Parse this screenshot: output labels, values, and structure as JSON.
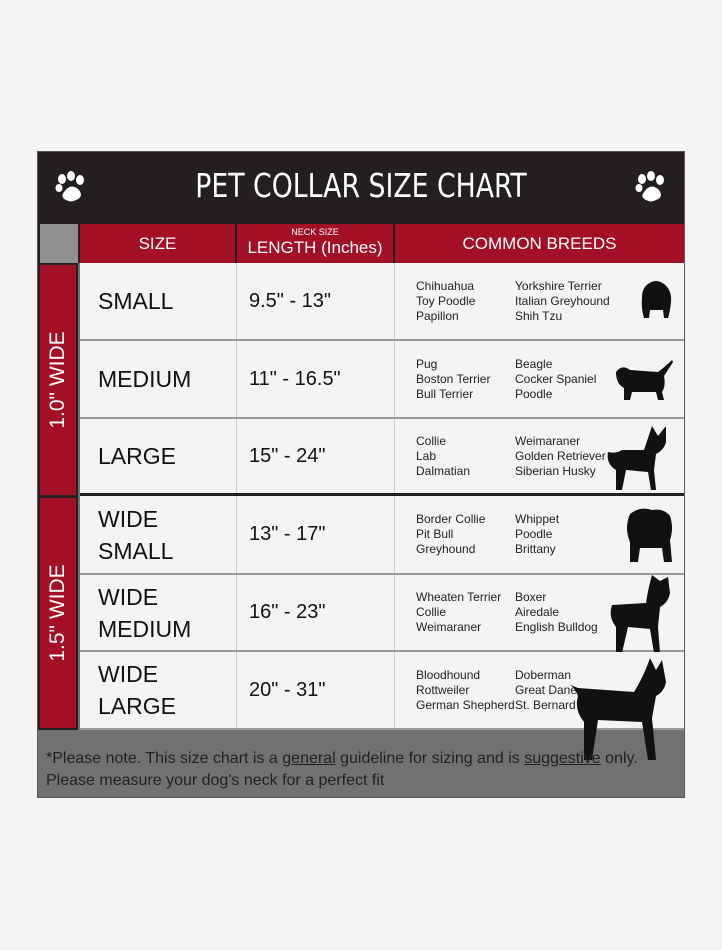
{
  "title": "PET COLLAR SIZE CHART",
  "columns": {
    "size": "SIZE",
    "neck_size": "NECK SIZE",
    "length": "LENGTH (Inches)",
    "breeds": "COMMON BREEDS"
  },
  "groups": [
    {
      "label": "1.0\" WIDE"
    },
    {
      "label": "1.5\" WIDE"
    }
  ],
  "rows": [
    {
      "size": "SMALL",
      "length": "9.5\" - 13\"",
      "breeds_a": [
        "Chihuahua",
        "Toy Poodle",
        "Papillon"
      ],
      "breeds_b": [
        "Yorkshire Terrier",
        "Italian Greyhound",
        "Shih Tzu"
      ],
      "icon": "small-dog-icon"
    },
    {
      "size": "MEDIUM",
      "length": "11\" - 16.5\"",
      "breeds_a": [
        "Pug",
        "Boston Terrier",
        "Bull Terrier"
      ],
      "breeds_b": [
        "Beagle",
        "Cocker Spaniel",
        "Poodle"
      ],
      "icon": "dachshund-icon"
    },
    {
      "size": "LARGE",
      "length": "15\" - 24\"",
      "breeds_a": [
        "Collie",
        "Lab",
        "Dalmatian"
      ],
      "breeds_b": [
        "Weimaraner",
        "Golden Retriever",
        "Siberian Husky"
      ],
      "icon": "shepherd-dog-icon"
    },
    {
      "size": "WIDE SMALL",
      "length": "13\" - 17\"",
      "breeds_a": [
        "Border Collie",
        "Pit Bull",
        "Greyhound"
      ],
      "breeds_b": [
        "Whippet",
        "Poodle",
        "Brittany"
      ],
      "icon": "bulldog-icon"
    },
    {
      "size": "WIDE MEDIUM",
      "length": "16\" - 23\"",
      "breeds_a": [
        "Wheaten Terrier",
        "Collie",
        "Weimaraner"
      ],
      "breeds_b": [
        "Boxer",
        "Airedale",
        "English Bulldog"
      ],
      "icon": "pitbull-icon"
    },
    {
      "size": "WIDE LARGE",
      "length": "20\" - 31\"",
      "breeds_a": [
        "Bloodhound",
        "Rottweiler",
        "German Shepherd"
      ],
      "breeds_b": [
        "Doberman",
        "Great Dane",
        "St. Bernard"
      ],
      "icon": "doberman-icon"
    }
  ],
  "footer": {
    "p1": "*Please note. This size chart is a ",
    "u1": "general",
    "p2": " guideline for sizing and is ",
    "u2": "suggestive",
    "p3": " only.",
    "line2": "Please measure your dog's neck for a perfect fit"
  }
}
